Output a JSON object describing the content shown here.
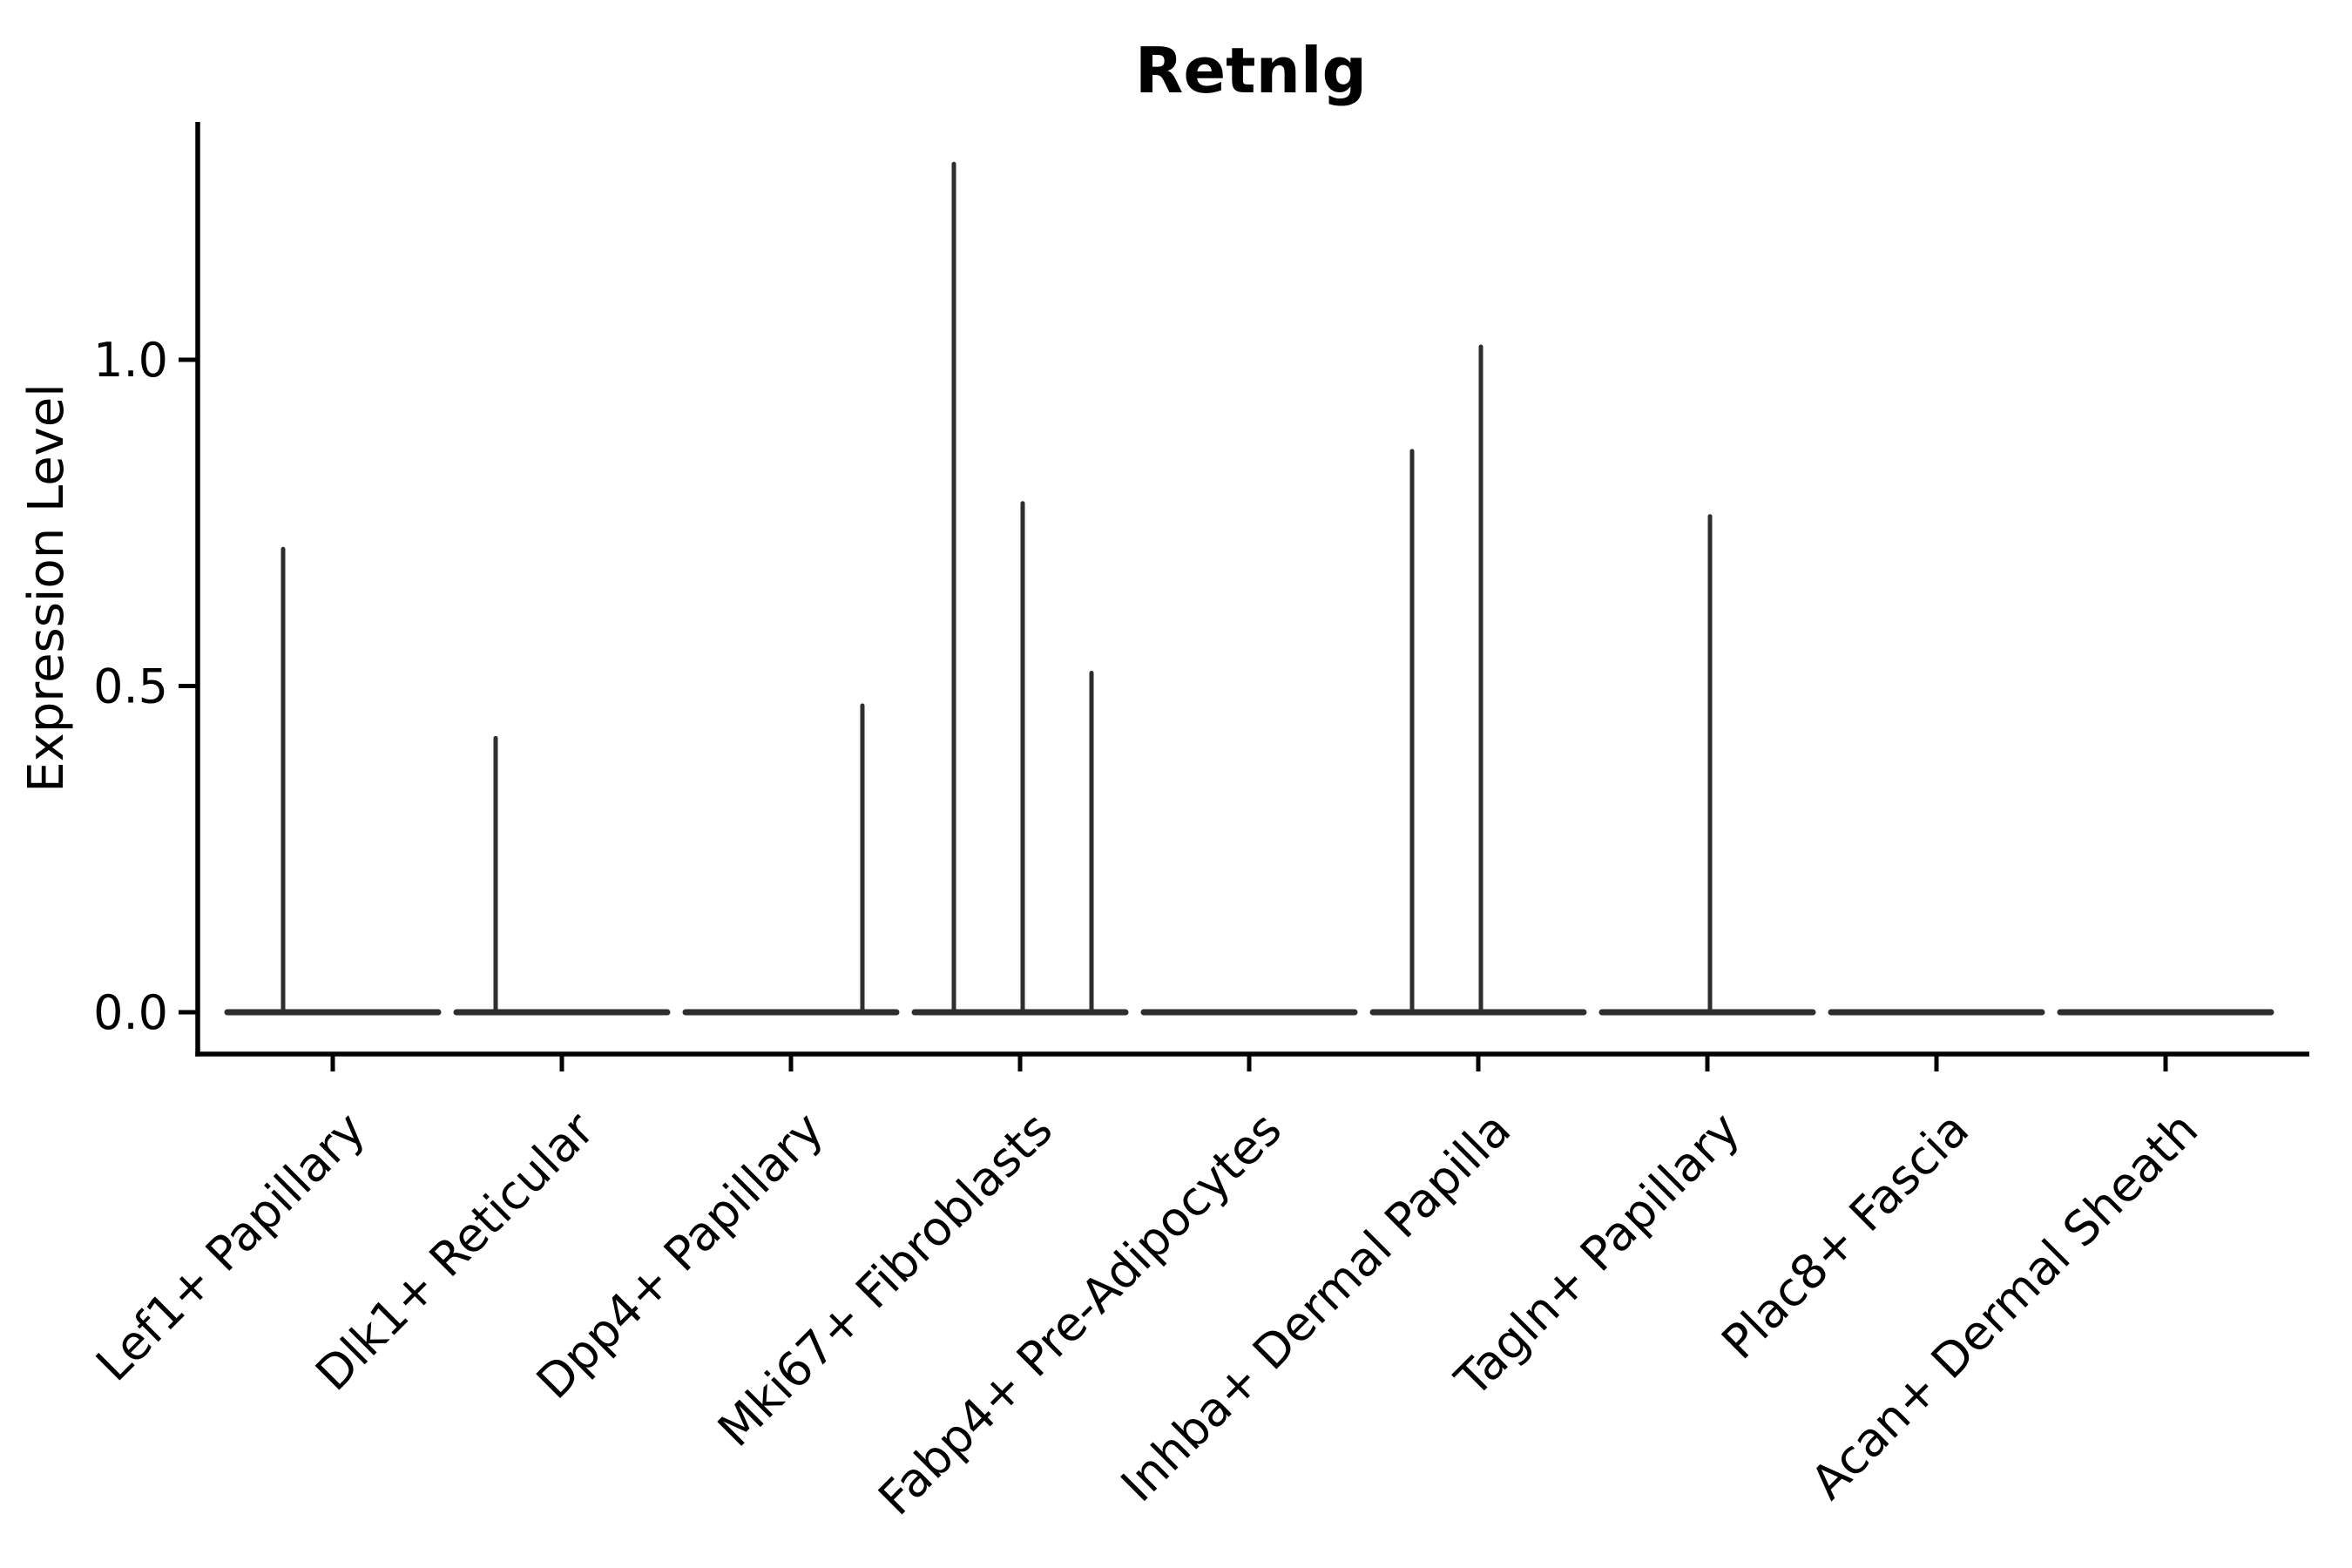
{
  "title": "Retnlg",
  "axes": {
    "ylabel": "Expression Level",
    "y_ticks": [
      "0.0",
      "0.5",
      "1.0"
    ]
  },
  "chart_data": {
    "type": "violin",
    "title": "Retnlg",
    "xlabel": "",
    "ylabel": "Expression Level",
    "ylim": [
      -0.064,
      1.364
    ],
    "y_tick_values": [
      0.0,
      0.5,
      1.0
    ],
    "y_tick_labels": [
      "0.0",
      "0.5",
      "1.0"
    ],
    "grid": false,
    "legend": "none",
    "categories": [
      "Lef1+ Papillary",
      "Dlk1+ Reticular",
      "Dpp4+ Papillary",
      "Mki67+ Fibroblasts",
      "Fabp4+ Pre-Adipocytes",
      "Inhba+ Dermal Papilla",
      "Tagln+ Papillary",
      "Plac8+ Fascia",
      "Acan+ Dermal Sheath"
    ],
    "series": [
      {
        "name": "Lef1+ Papillary",
        "baseline": 0.0,
        "spikes": [
          {
            "value": 0.71,
            "dx": -57
          }
        ]
      },
      {
        "name": "Dlk1+ Reticular",
        "baseline": 0.0,
        "spikes": [
          {
            "value": 0.42,
            "dx": -76
          }
        ]
      },
      {
        "name": "Dpp4+ Papillary",
        "baseline": 0.0,
        "spikes": [
          {
            "value": 0.47,
            "dx": 82
          }
        ]
      },
      {
        "name": "Mki67+ Fibroblasts",
        "baseline": 0.0,
        "spikes": [
          {
            "value": 1.3,
            "dx": -76
          },
          {
            "value": 0.78,
            "dx": 3
          },
          {
            "value": 0.52,
            "dx": 82
          }
        ]
      },
      {
        "name": "Fabp4+ Pre-Adipocytes",
        "baseline": 0.0,
        "spikes": []
      },
      {
        "name": "Inhba+ Dermal Papilla",
        "baseline": 0.0,
        "spikes": [
          {
            "value": 0.86,
            "dx": -76
          },
          {
            "value": 1.02,
            "dx": 3
          }
        ]
      },
      {
        "name": "Tagln+ Papillary",
        "baseline": 0.0,
        "spikes": [
          {
            "value": 0.76,
            "dx": 3
          }
        ]
      },
      {
        "name": "Plac8+ Fascia",
        "baseline": 0.0,
        "spikes": []
      },
      {
        "name": "Acan+ Dermal Sheath",
        "baseline": 0.0,
        "spikes": []
      }
    ]
  },
  "colors": {
    "background": "#ffffff",
    "axis": "#000000",
    "text": "#000000",
    "violin": "#2e2e2e"
  }
}
